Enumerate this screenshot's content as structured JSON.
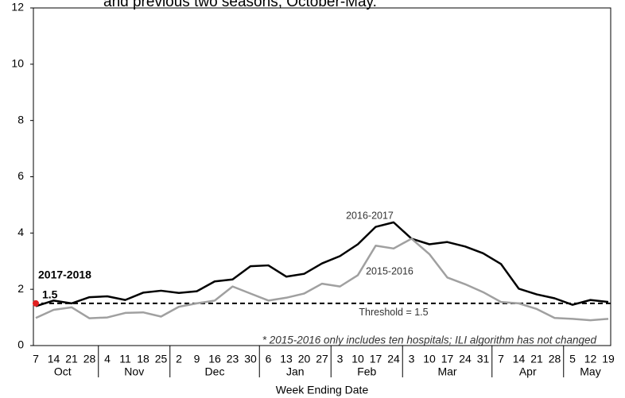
{
  "chart_data": {
    "type": "line",
    "title": "and previous two seasons, October-May.",
    "x_label": "Week Ending Date",
    "months": [
      {
        "name": "Oct",
        "days": [
          "7",
          "14",
          "21",
          "28"
        ]
      },
      {
        "name": "Nov",
        "days": [
          "4",
          "11",
          "18",
          "25"
        ]
      },
      {
        "name": "Dec",
        "days": [
          "2",
          "9",
          "16",
          "23",
          "30"
        ]
      },
      {
        "name": "Jan",
        "days": [
          "6",
          "13",
          "20",
          "27"
        ]
      },
      {
        "name": "Feb",
        "days": [
          "3",
          "10",
          "17",
          "24"
        ]
      },
      {
        "name": "Mar",
        "days": [
          "3",
          "10",
          "17",
          "24",
          "31"
        ]
      },
      {
        "name": "Apr",
        "days": [
          "7",
          "14",
          "21",
          "28"
        ]
      },
      {
        "name": "May",
        "days": [
          "5",
          "12",
          "19"
        ]
      }
    ],
    "series": [
      {
        "name": "2016-2017",
        "color": "#000000",
        "values": [
          1.4,
          1.6,
          1.5,
          1.72,
          1.75,
          1.62,
          1.88,
          1.95,
          1.87,
          1.93,
          2.28,
          2.35,
          2.82,
          2.85,
          2.45,
          2.55,
          2.92,
          3.18,
          3.6,
          4.22,
          4.38,
          3.8,
          3.6,
          3.68,
          3.52,
          3.28,
          2.9,
          2.02,
          1.82,
          1.68,
          1.45,
          1.62,
          1.55
        ]
      },
      {
        "name": "2015-2016",
        "color": "#a0a0a0",
        "values": [
          0.98,
          1.27,
          1.36,
          0.97,
          1.0,
          1.16,
          1.18,
          1.03,
          1.38,
          1.5,
          1.6,
          2.1,
          1.85,
          1.6,
          1.7,
          1.85,
          2.2,
          2.1,
          2.5,
          3.55,
          3.45,
          3.8,
          3.25,
          2.42,
          2.18,
          1.9,
          1.55,
          1.5,
          1.3,
          0.98,
          0.95,
          0.9,
          0.95
        ]
      },
      {
        "name": "2017-2018",
        "color": "#e02020",
        "values": [
          1.5
        ]
      }
    ],
    "threshold": 1.5,
    "threshold_label": "Threshold = 1.5",
    "footnote": "* 2015-2016 only includes ten hospitals; ILI algorithm has not changed",
    "ylim": [
      0,
      12
    ],
    "yticks": [
      0,
      2,
      4,
      6,
      8,
      10,
      12
    ],
    "grid": false
  }
}
